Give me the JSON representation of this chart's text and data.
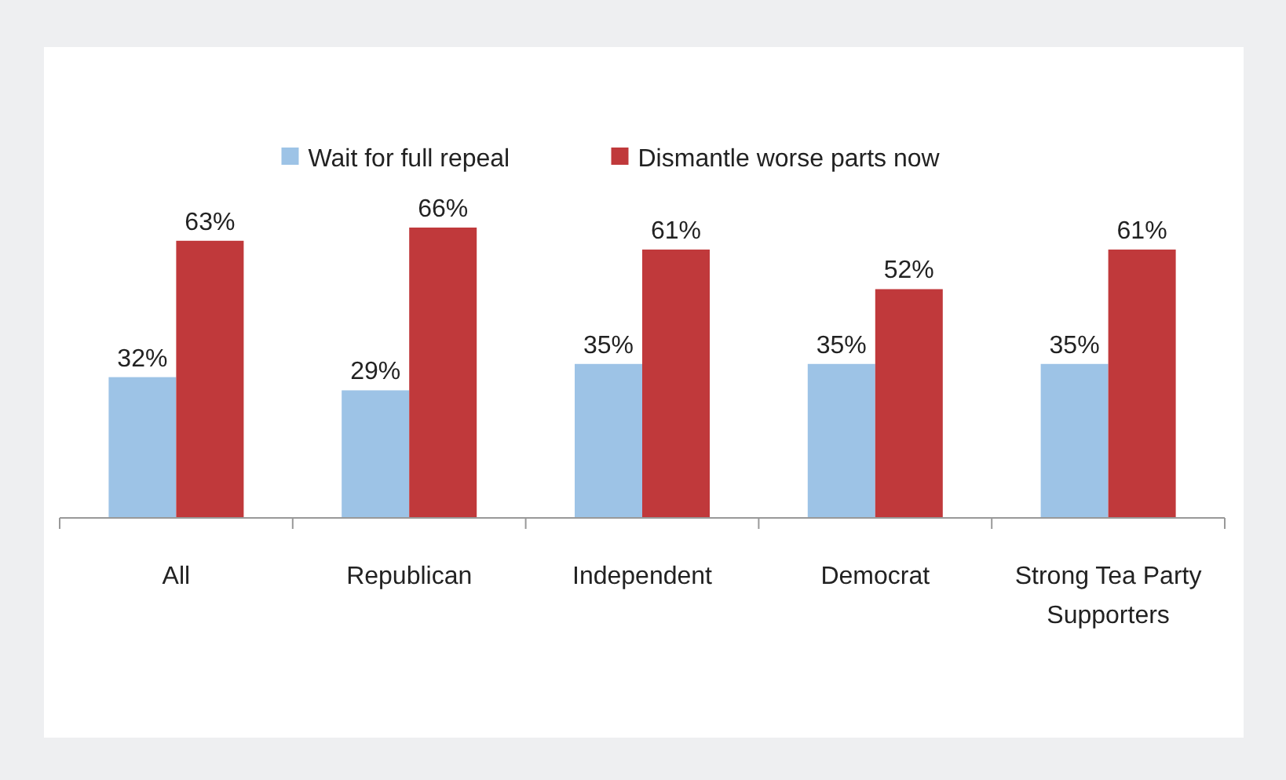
{
  "chart_data": {
    "type": "bar",
    "categories": [
      "All",
      "Republican",
      "Independent",
      "Democrat",
      "Strong Tea Party Supporters"
    ],
    "series": [
      {
        "name": "Wait for full repeal",
        "color": "#9dc3e6",
        "values": [
          32,
          29,
          35,
          35,
          35
        ],
        "value_labels": [
          "32%",
          "29%",
          "35%",
          "35%",
          "35%"
        ]
      },
      {
        "name": "Dismantle worse parts now",
        "color": "#c0393b",
        "values": [
          63,
          66,
          61,
          52,
          61
        ],
        "value_labels": [
          "63%",
          "66%",
          "61%",
          "52%",
          "61%"
        ]
      }
    ],
    "legend": "top"
  }
}
